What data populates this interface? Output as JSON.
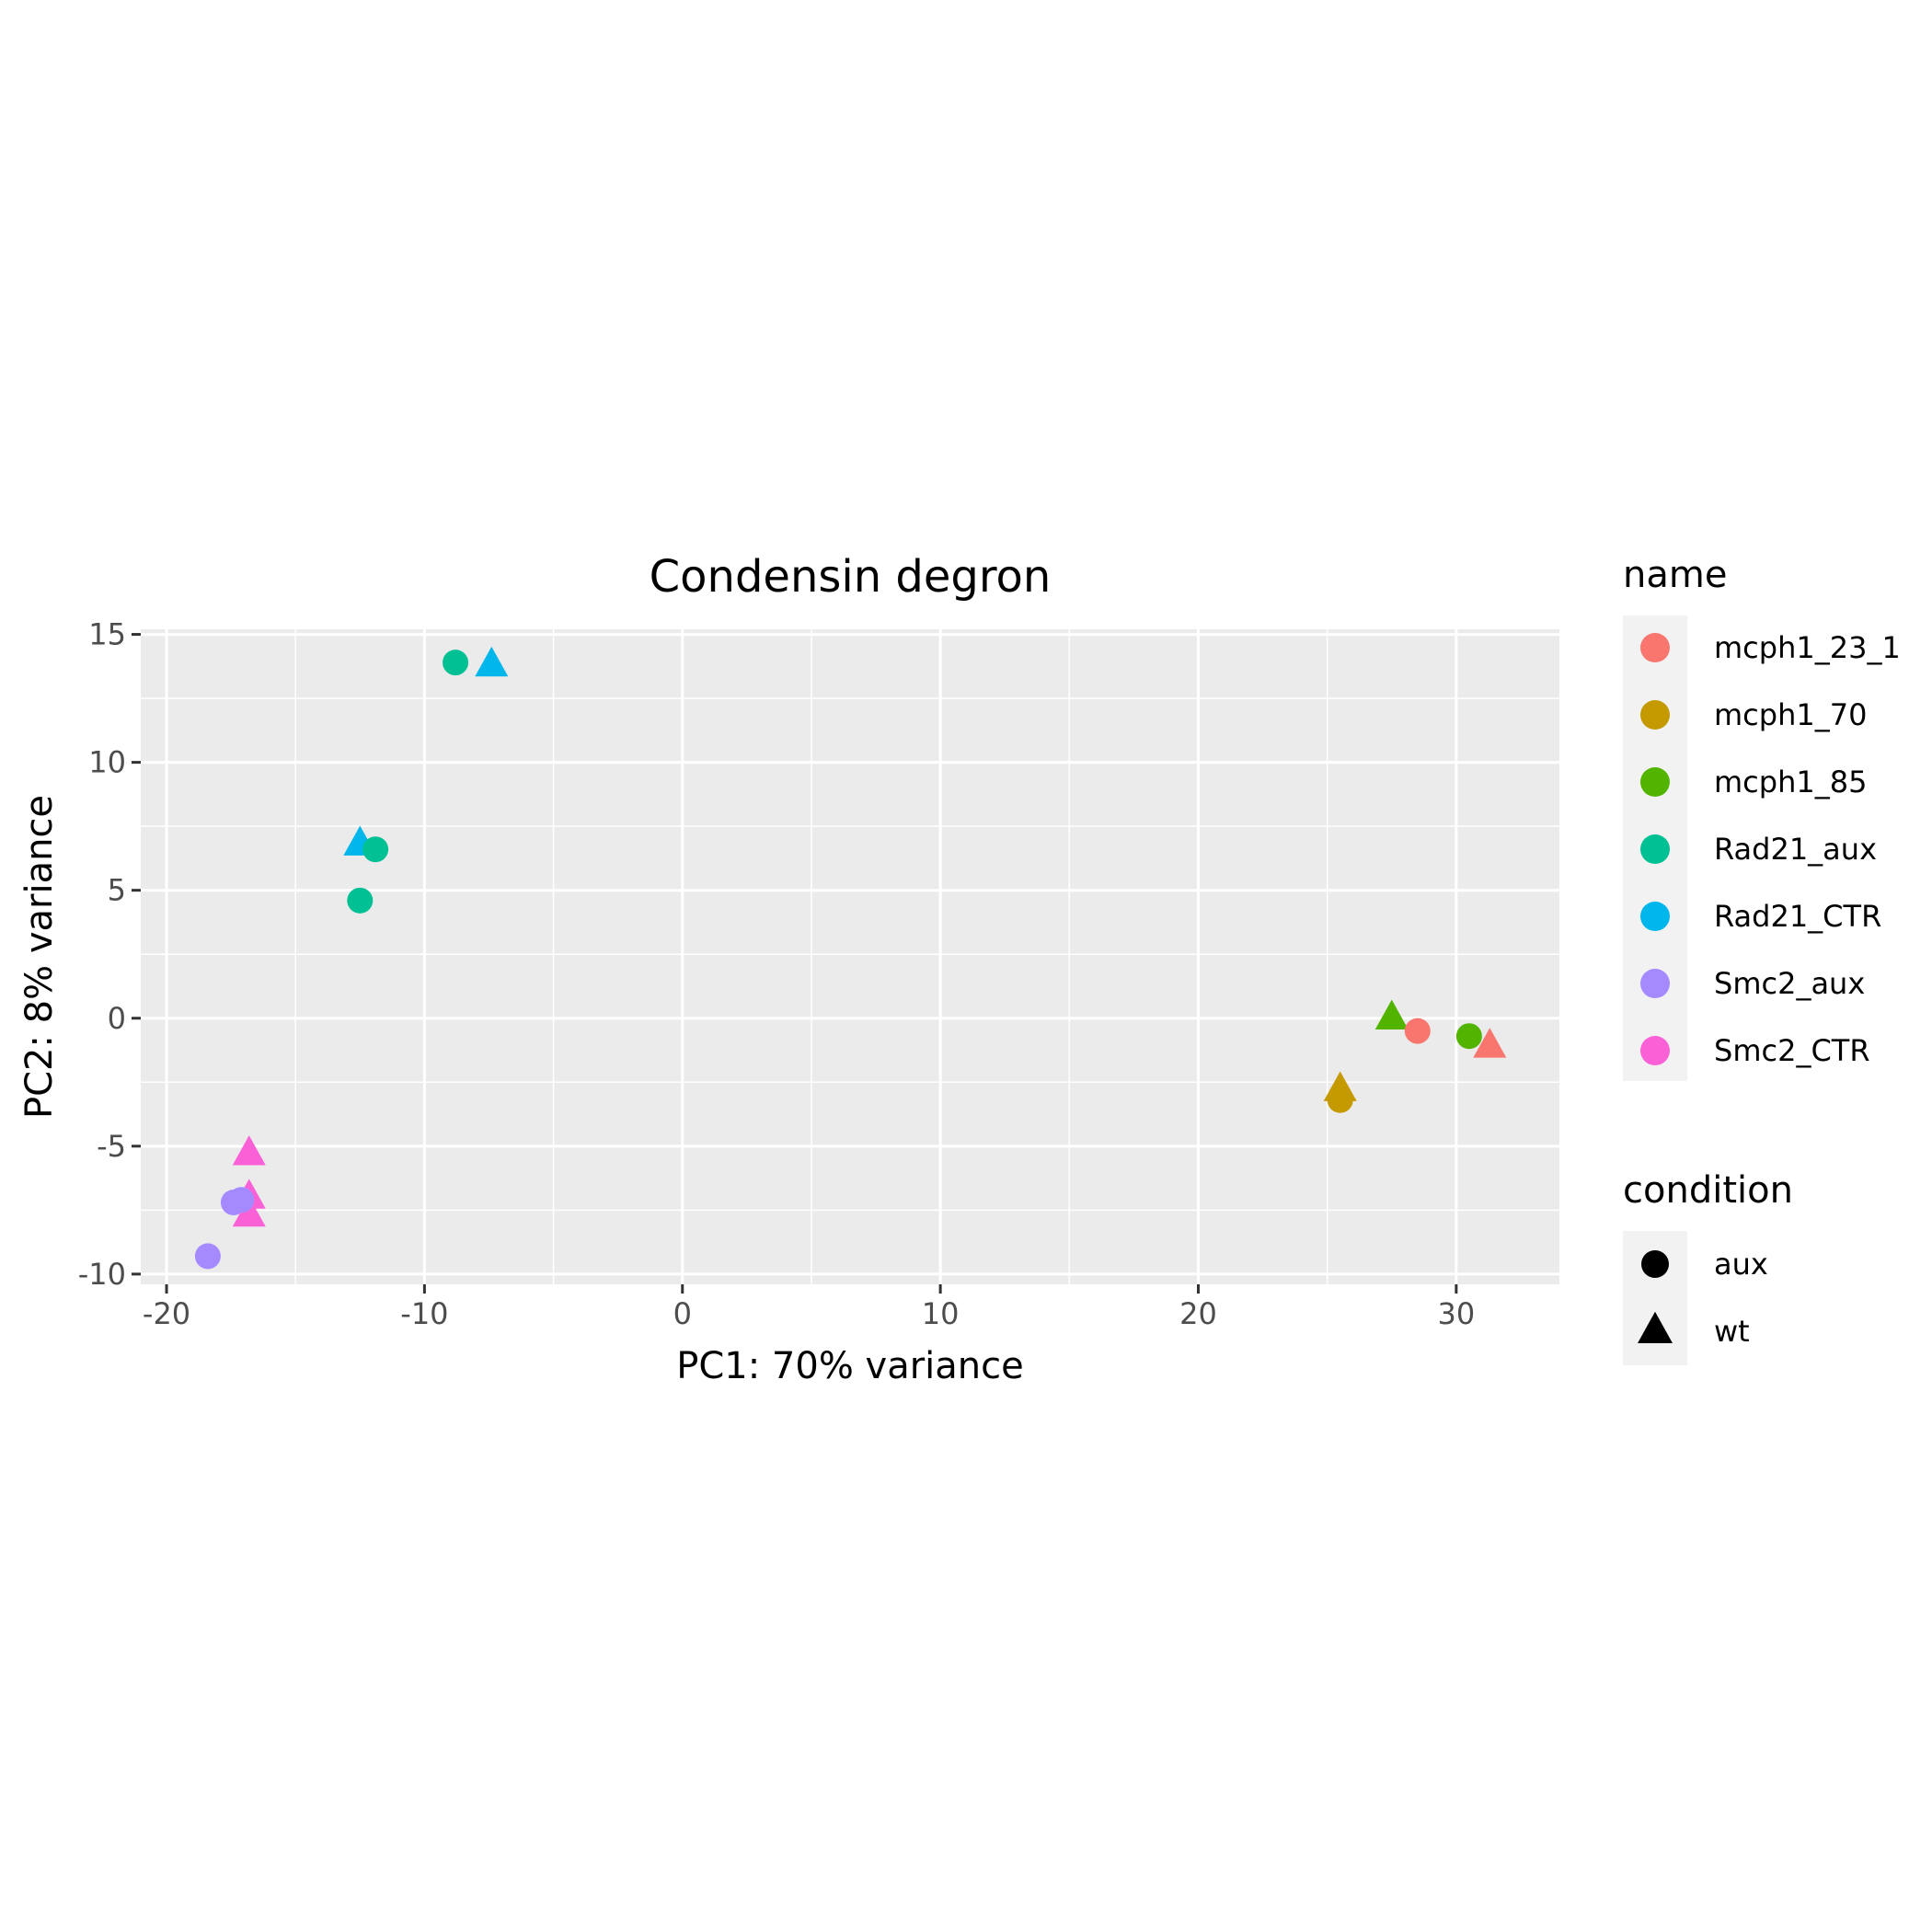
{
  "chart_data": {
    "type": "scatter",
    "title": "Condensin degron",
    "xlabel": "PC1: 70% variance",
    "ylabel": "PC2: 8% variance",
    "xlim": [
      -21,
      34
    ],
    "ylim": [
      -10.4,
      15.2
    ],
    "x_ticks": [
      -20,
      -10,
      0,
      10,
      20,
      30
    ],
    "x_tick_labels": [
      "-20",
      "-10",
      "0",
      "10",
      "20",
      "30"
    ],
    "y_ticks": [
      -10,
      -5,
      0,
      5,
      10,
      15
    ],
    "y_tick_labels": [
      "-10",
      "-5",
      "0",
      "5",
      "10",
      "15"
    ],
    "grid": true,
    "legend_placement": "right",
    "legend_name": {
      "title": "name",
      "entries": [
        {
          "label": "mcph1_23_1",
          "color": "#F8766D"
        },
        {
          "label": "mcph1_70",
          "color": "#C49A00"
        },
        {
          "label": "mcph1_85",
          "color": "#53B400"
        },
        {
          "label": "Rad21_aux",
          "color": "#00C094"
        },
        {
          "label": "Rad21_CTR",
          "color": "#00B6EB"
        },
        {
          "label": "Smc2_aux",
          "color": "#A58AFF"
        },
        {
          "label": "Smc2_CTR",
          "color": "#FB61D7"
        }
      ]
    },
    "legend_condition": {
      "title": "condition",
      "entries": [
        {
          "label": "aux",
          "shape": "circle"
        },
        {
          "label": "wt",
          "shape": "triangle"
        }
      ]
    },
    "points": [
      {
        "x": -8.8,
        "y": 13.9,
        "name": "Rad21_aux",
        "condition": "aux"
      },
      {
        "x": -7.4,
        "y": 13.8,
        "name": "Rad21_CTR",
        "condition": "wt"
      },
      {
        "x": -12.5,
        "y": 6.8,
        "name": "Rad21_CTR",
        "condition": "wt"
      },
      {
        "x": -11.9,
        "y": 6.6,
        "name": "Rad21_aux",
        "condition": "aux"
      },
      {
        "x": -12.5,
        "y": 4.6,
        "name": "Rad21_aux",
        "condition": "aux"
      },
      {
        "x": 27.5,
        "y": 0.0,
        "name": "mcph1_85",
        "condition": "wt"
      },
      {
        "x": 28.5,
        "y": -0.5,
        "name": "mcph1_23_1",
        "condition": "aux"
      },
      {
        "x": 30.5,
        "y": -0.7,
        "name": "mcph1_85",
        "condition": "aux"
      },
      {
        "x": 31.3,
        "y": -1.1,
        "name": "mcph1_23_1",
        "condition": "wt"
      },
      {
        "x": 25.5,
        "y": -2.8,
        "name": "mcph1_70",
        "condition": "wt"
      },
      {
        "x": 25.5,
        "y": -3.2,
        "name": "mcph1_70",
        "condition": "aux"
      },
      {
        "x": -16.8,
        "y": -5.3,
        "name": "Smc2_CTR",
        "condition": "wt"
      },
      {
        "x": -16.8,
        "y": -7.0,
        "name": "Smc2_CTR",
        "condition": "wt"
      },
      {
        "x": -16.8,
        "y": -7.7,
        "name": "Smc2_CTR",
        "condition": "wt"
      },
      {
        "x": -17.4,
        "y": -7.2,
        "name": "Smc2_aux",
        "condition": "aux"
      },
      {
        "x": -17.1,
        "y": -7.1,
        "name": "Smc2_aux",
        "condition": "aux"
      },
      {
        "x": -18.4,
        "y": -9.3,
        "name": "Smc2_aux",
        "condition": "aux"
      }
    ]
  }
}
